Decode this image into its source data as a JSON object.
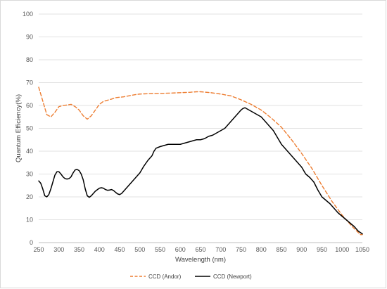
{
  "chart_data": {
    "type": "line",
    "xlabel": "Wavelength (nm)",
    "ylabel": "Quantum Efficiency(%)",
    "xlim": [
      250,
      1050
    ],
    "ylim": [
      0,
      100
    ],
    "x_ticks": [
      250,
      300,
      350,
      400,
      450,
      500,
      550,
      600,
      650,
      700,
      750,
      800,
      850,
      900,
      950,
      1000,
      1050
    ],
    "y_ticks": [
      0,
      10,
      20,
      30,
      40,
      50,
      60,
      70,
      80,
      90,
      100
    ],
    "grid": "horizontal",
    "legend_position": "bottom",
    "series": [
      {
        "name": "CCD (Andor)",
        "color": "#ED7D31",
        "dash": "dashed",
        "points": [
          [
            250,
            68
          ],
          [
            260,
            62
          ],
          [
            270,
            56
          ],
          [
            280,
            55
          ],
          [
            290,
            57
          ],
          [
            300,
            59.5
          ],
          [
            310,
            60
          ],
          [
            320,
            60.2
          ],
          [
            330,
            60.5
          ],
          [
            340,
            59.5
          ],
          [
            350,
            58
          ],
          [
            360,
            55.5
          ],
          [
            370,
            54
          ],
          [
            380,
            55.5
          ],
          [
            390,
            58
          ],
          [
            400,
            60.5
          ],
          [
            410,
            61.8
          ],
          [
            420,
            62.3
          ],
          [
            430,
            62.8
          ],
          [
            440,
            63.4
          ],
          [
            450,
            63.6
          ],
          [
            460,
            63.8
          ],
          [
            475,
            64.3
          ],
          [
            490,
            64.8
          ],
          [
            500,
            65
          ],
          [
            525,
            65.2
          ],
          [
            550,
            65.3
          ],
          [
            575,
            65.4
          ],
          [
            600,
            65.6
          ],
          [
            625,
            65.8
          ],
          [
            640,
            66
          ],
          [
            650,
            66
          ],
          [
            675,
            65.6
          ],
          [
            700,
            65
          ],
          [
            725,
            64.2
          ],
          [
            750,
            62.5
          ],
          [
            775,
            60.5
          ],
          [
            800,
            58
          ],
          [
            825,
            54.5
          ],
          [
            850,
            50.5
          ],
          [
            875,
            45
          ],
          [
            900,
            39
          ],
          [
            925,
            32.5
          ],
          [
            950,
            25
          ],
          [
            975,
            18
          ],
          [
            1000,
            12
          ],
          [
            1025,
            7
          ],
          [
            1045,
            3.5
          ],
          [
            1050,
            3.5
          ]
        ]
      },
      {
        "name": "CCD (Newport)",
        "color": "#000000",
        "dash": "solid",
        "points": [
          [
            250,
            27
          ],
          [
            255,
            26
          ],
          [
            260,
            23.5
          ],
          [
            265,
            20.5
          ],
          [
            270,
            20
          ],
          [
            275,
            21
          ],
          [
            280,
            23.5
          ],
          [
            285,
            26.5
          ],
          [
            290,
            29.5
          ],
          [
            295,
            31
          ],
          [
            300,
            31
          ],
          [
            305,
            30
          ],
          [
            310,
            28.8
          ],
          [
            315,
            28
          ],
          [
            320,
            27.8
          ],
          [
            325,
            28
          ],
          [
            330,
            28.8
          ],
          [
            335,
            30.5
          ],
          [
            340,
            31.8
          ],
          [
            345,
            32
          ],
          [
            350,
            31.5
          ],
          [
            355,
            30
          ],
          [
            360,
            27.5
          ],
          [
            365,
            23.5
          ],
          [
            370,
            20.5
          ],
          [
            375,
            19.8
          ],
          [
            380,
            20.5
          ],
          [
            390,
            22.5
          ],
          [
            400,
            23.8
          ],
          [
            405,
            24
          ],
          [
            410,
            23.8
          ],
          [
            415,
            23.2
          ],
          [
            420,
            22.9
          ],
          [
            425,
            23
          ],
          [
            430,
            23.2
          ],
          [
            435,
            22.8
          ],
          [
            440,
            22
          ],
          [
            445,
            21.3
          ],
          [
            450,
            21
          ],
          [
            455,
            21.5
          ],
          [
            460,
            22.5
          ],
          [
            470,
            24.5
          ],
          [
            480,
            26.5
          ],
          [
            490,
            28.5
          ],
          [
            500,
            30.5
          ],
          [
            510,
            33.5
          ],
          [
            520,
            36
          ],
          [
            530,
            38
          ],
          [
            535,
            40
          ],
          [
            540,
            41.3
          ],
          [
            550,
            42
          ],
          [
            560,
            42.5
          ],
          [
            570,
            43
          ],
          [
            580,
            43
          ],
          [
            590,
            43
          ],
          [
            600,
            43
          ],
          [
            610,
            43.5
          ],
          [
            620,
            44
          ],
          [
            630,
            44.5
          ],
          [
            640,
            45
          ],
          [
            650,
            45
          ],
          [
            660,
            45.5
          ],
          [
            670,
            46.5
          ],
          [
            680,
            47
          ],
          [
            690,
            48
          ],
          [
            700,
            49
          ],
          [
            710,
            50
          ],
          [
            720,
            52
          ],
          [
            730,
            54
          ],
          [
            740,
            56
          ],
          [
            750,
            58
          ],
          [
            755,
            58.7
          ],
          [
            760,
            59
          ],
          [
            770,
            58
          ],
          [
            780,
            57
          ],
          [
            790,
            56
          ],
          [
            800,
            55
          ],
          [
            810,
            53
          ],
          [
            820,
            51
          ],
          [
            830,
            49
          ],
          [
            840,
            46
          ],
          [
            850,
            43
          ],
          [
            860,
            41
          ],
          [
            870,
            39
          ],
          [
            880,
            37
          ],
          [
            890,
            35
          ],
          [
            900,
            33
          ],
          [
            910,
            30
          ],
          [
            920,
            28.5
          ],
          [
            930,
            26.5
          ],
          [
            940,
            23
          ],
          [
            950,
            20
          ],
          [
            960,
            18.5
          ],
          [
            970,
            17
          ],
          [
            980,
            15
          ],
          [
            990,
            13
          ],
          [
            1000,
            11.5
          ],
          [
            1010,
            10
          ],
          [
            1020,
            8.5
          ],
          [
            1030,
            7
          ],
          [
            1040,
            5
          ],
          [
            1050,
            3.8
          ]
        ]
      }
    ]
  }
}
